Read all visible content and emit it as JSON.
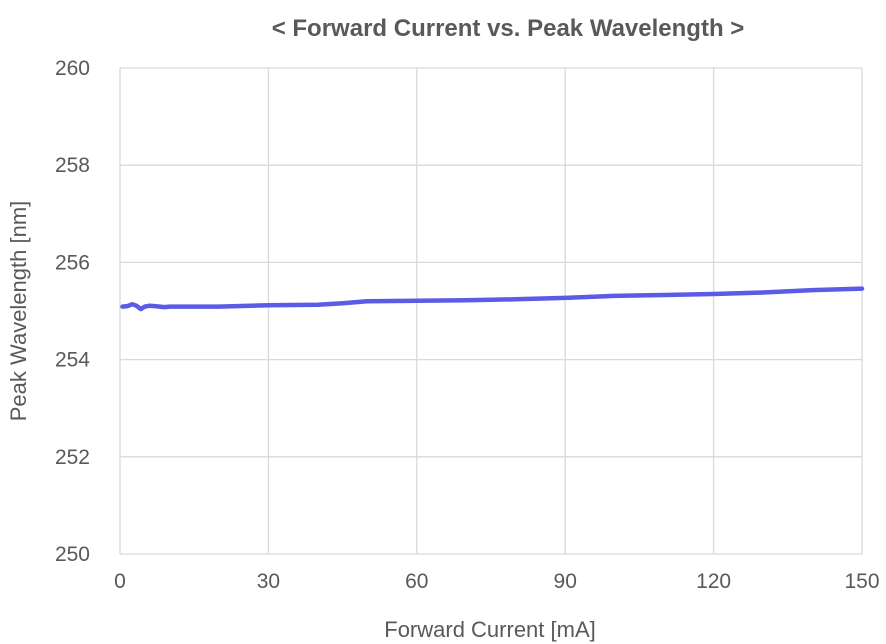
{
  "chart_data": {
    "type": "line",
    "title": "< Forward Current vs. Peak Wavelength >",
    "xlabel": "Forward Current [mA]",
    "ylabel": "Peak Wavelength [nm]",
    "xlim": [
      0,
      150
    ],
    "ylim": [
      250,
      260
    ],
    "xticks": [
      0,
      30,
      60,
      90,
      120,
      150
    ],
    "yticks": [
      250,
      252,
      254,
      256,
      258,
      260
    ],
    "grid": true,
    "legend": "none",
    "series": [
      {
        "color": "#5b5be6",
        "x": [
          0.5,
          1.5,
          2.5,
          3.3,
          4.2,
          5.0,
          6.0,
          7.0,
          8.0,
          9.0,
          10.0,
          15,
          20,
          30,
          40,
          45,
          50,
          60,
          70,
          80,
          90,
          100,
          110,
          120,
          130,
          140,
          150
        ],
        "y": [
          255.09,
          255.1,
          255.14,
          255.11,
          255.04,
          255.09,
          255.11,
          255.1,
          255.09,
          255.08,
          255.09,
          255.09,
          255.09,
          255.12,
          255.13,
          255.16,
          255.2,
          255.21,
          255.22,
          255.24,
          255.27,
          255.31,
          255.33,
          255.35,
          255.38,
          255.43,
          255.46
        ]
      }
    ]
  }
}
